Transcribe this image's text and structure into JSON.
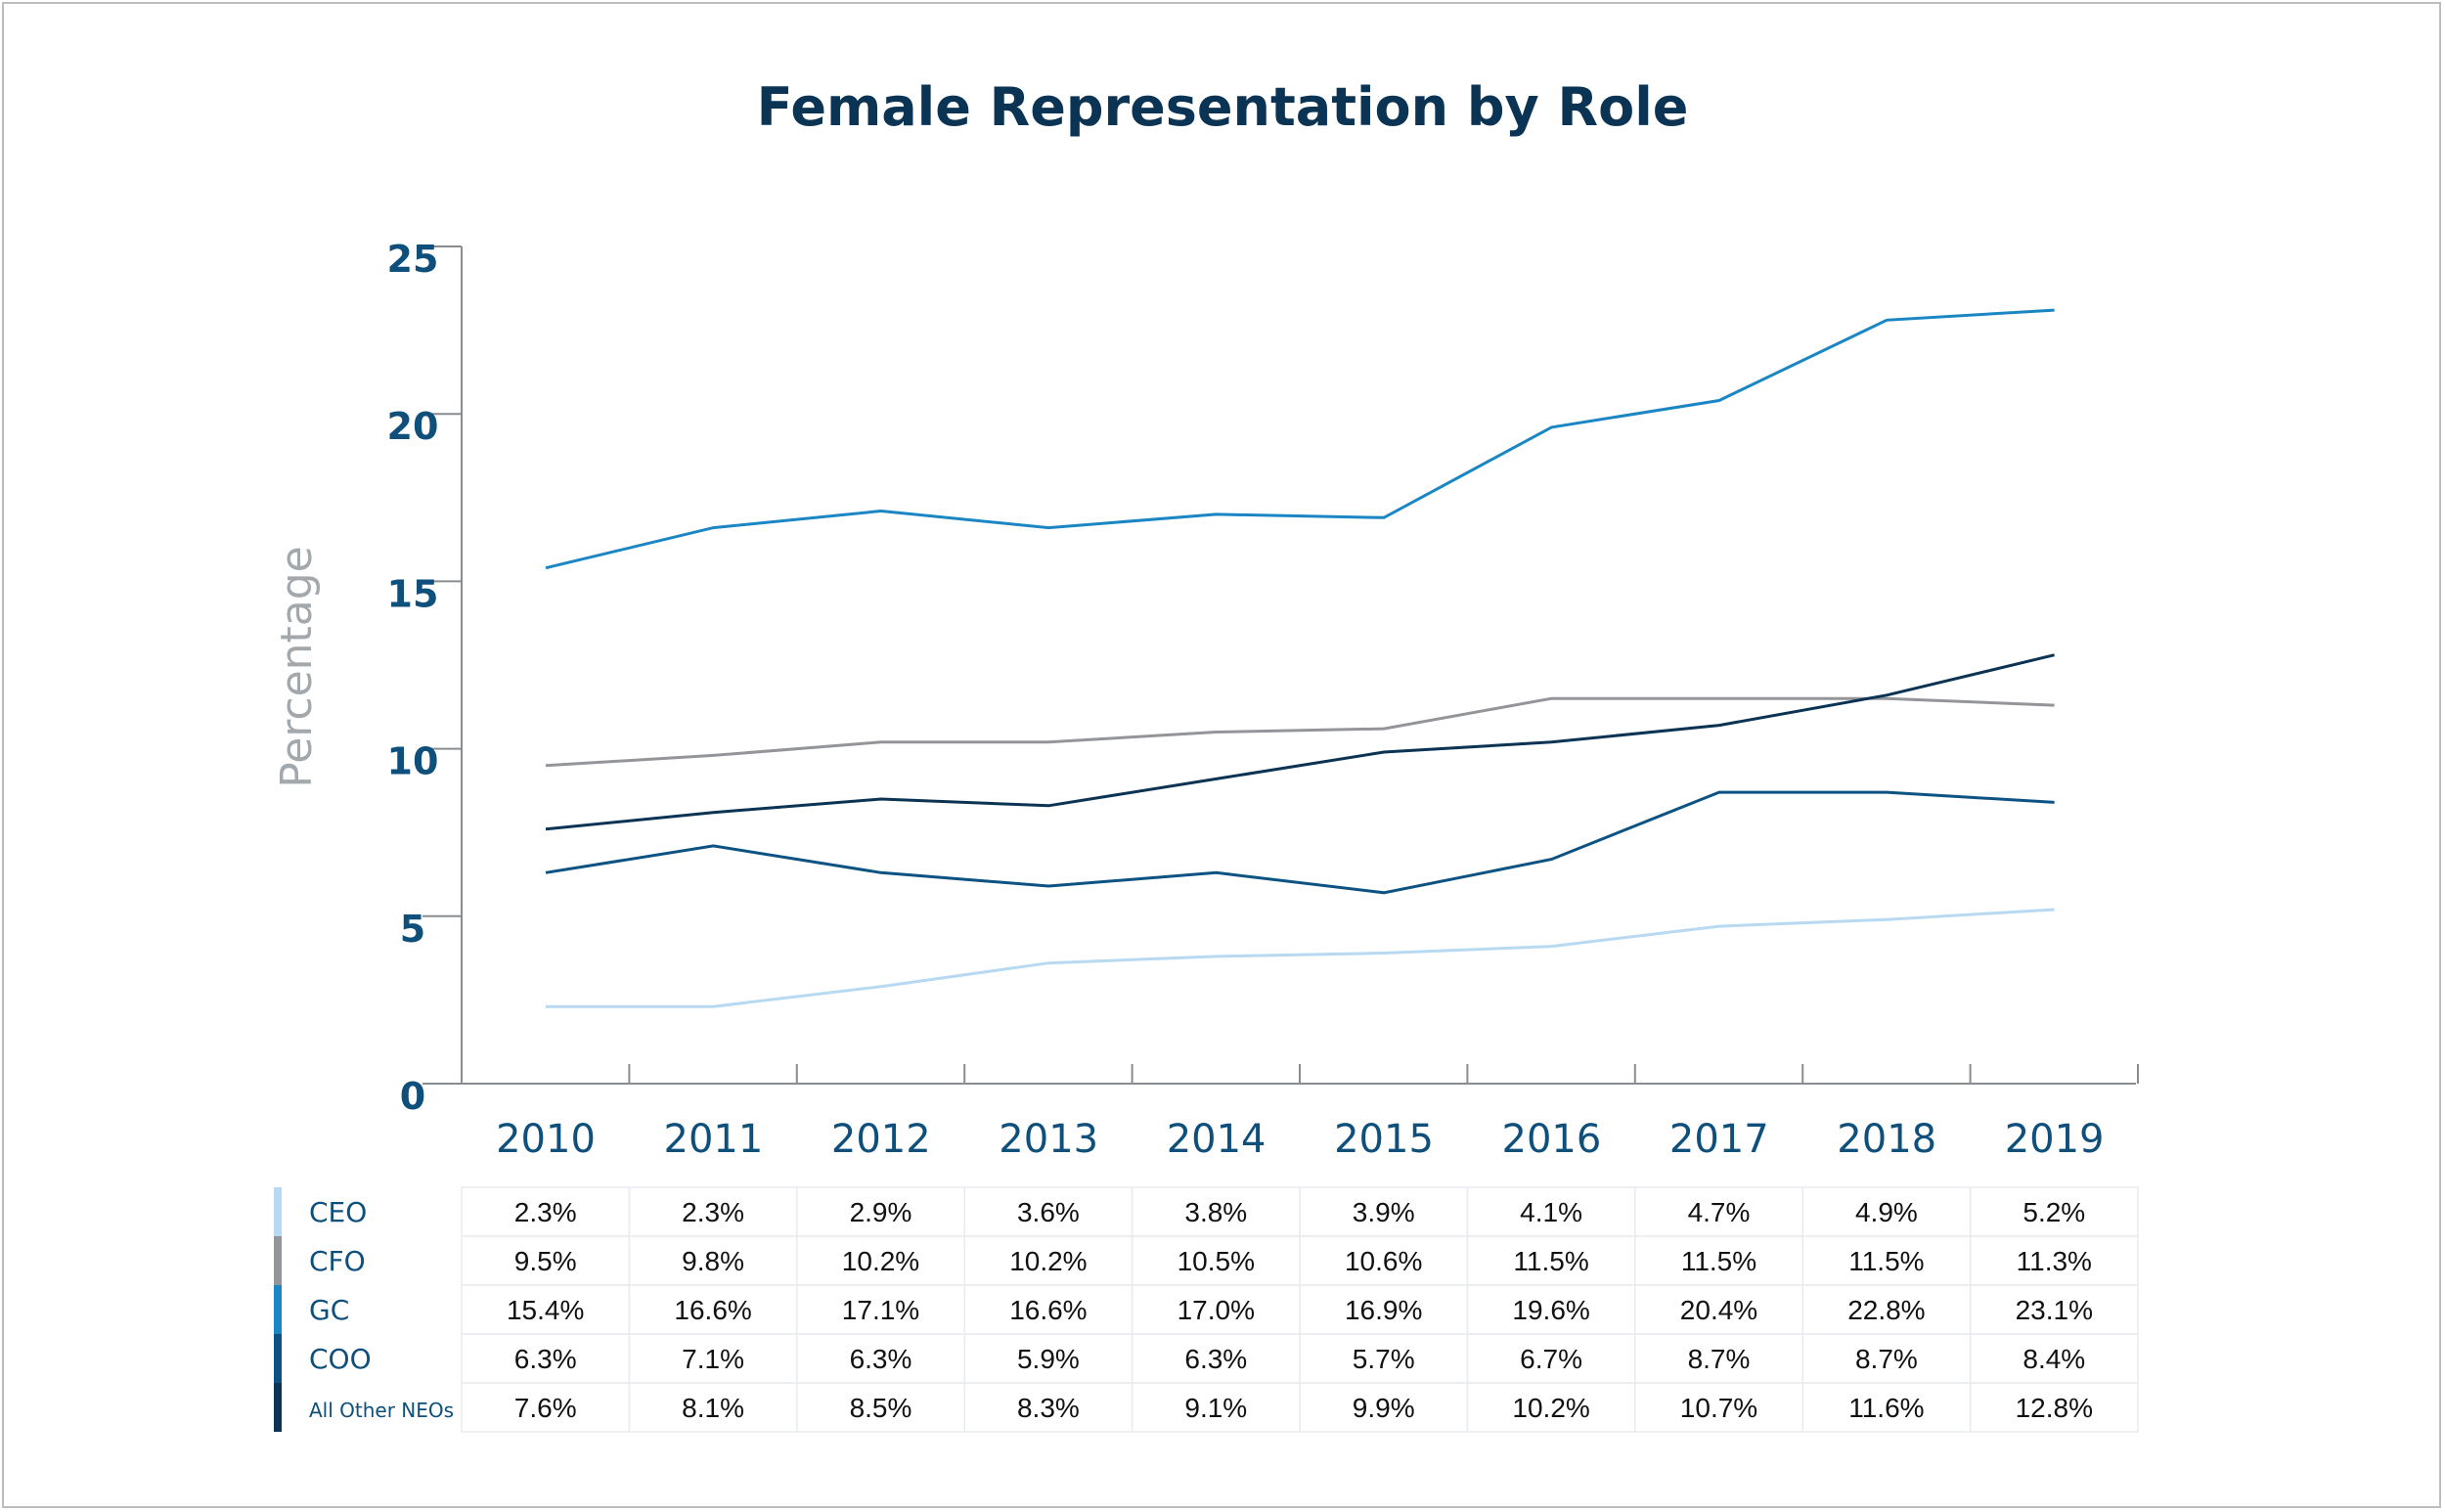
{
  "chart_data": {
    "type": "line",
    "title": "Female Representation by Role",
    "ylabel": "Percentage",
    "xlabel": "",
    "ylim": [
      0,
      25
    ],
    "yticks": [
      0,
      5,
      10,
      15,
      20,
      25
    ],
    "categories": [
      "2010",
      "2011",
      "2012",
      "2013",
      "2014",
      "2015",
      "2016",
      "2017",
      "2018",
      "2019"
    ],
    "series": [
      {
        "name": "CEO",
        "color": "#b7d9f1",
        "values": [
          2.3,
          2.3,
          2.9,
          3.6,
          3.8,
          3.9,
          4.1,
          4.7,
          4.9,
          5.2
        ],
        "labels": [
          "2.3%",
          "2.3%",
          "2.9%",
          "3.6%",
          "3.8%",
          "3.9%",
          "4.1%",
          "4.7%",
          "4.9%",
          "5.2%"
        ]
      },
      {
        "name": "CFO",
        "color": "#939598",
        "values": [
          9.5,
          9.8,
          10.2,
          10.2,
          10.5,
          10.6,
          11.5,
          11.5,
          11.5,
          11.3
        ],
        "labels": [
          "9.5%",
          "9.8%",
          "10.2%",
          "10.2%",
          "10.5%",
          "10.6%",
          "11.5%",
          "11.5%",
          "11.5%",
          "11.3%"
        ]
      },
      {
        "name": "GC",
        "color": "#1b86c4",
        "values": [
          15.4,
          16.6,
          17.1,
          16.6,
          17.0,
          16.9,
          19.6,
          20.4,
          22.8,
          23.1
        ],
        "labels": [
          "15.4%",
          "16.6%",
          "17.1%",
          "16.6%",
          "17.0%",
          "16.9%",
          "19.6%",
          "20.4%",
          "22.8%",
          "23.1%"
        ]
      },
      {
        "name": "COO",
        "color": "#0c5283",
        "values": [
          6.3,
          7.1,
          6.3,
          5.9,
          6.3,
          5.7,
          6.7,
          8.7,
          8.7,
          8.4
        ],
        "labels": [
          "6.3%",
          "7.1%",
          "6.3%",
          "5.9%",
          "6.3%",
          "5.7%",
          "6.7%",
          "8.7%",
          "8.7%",
          "8.4%"
        ]
      },
      {
        "name": "All Other NEOs",
        "color": "#0b3354",
        "values": [
          7.6,
          8.1,
          8.5,
          8.3,
          9.1,
          9.9,
          10.2,
          10.7,
          11.6,
          12.8
        ],
        "labels": [
          "7.6%",
          "8.1%",
          "8.5%",
          "8.3%",
          "9.1%",
          "9.9%",
          "10.2%",
          "10.7%",
          "11.6%",
          "12.8%"
        ]
      }
    ],
    "grid": false,
    "legend": "table-below"
  }
}
